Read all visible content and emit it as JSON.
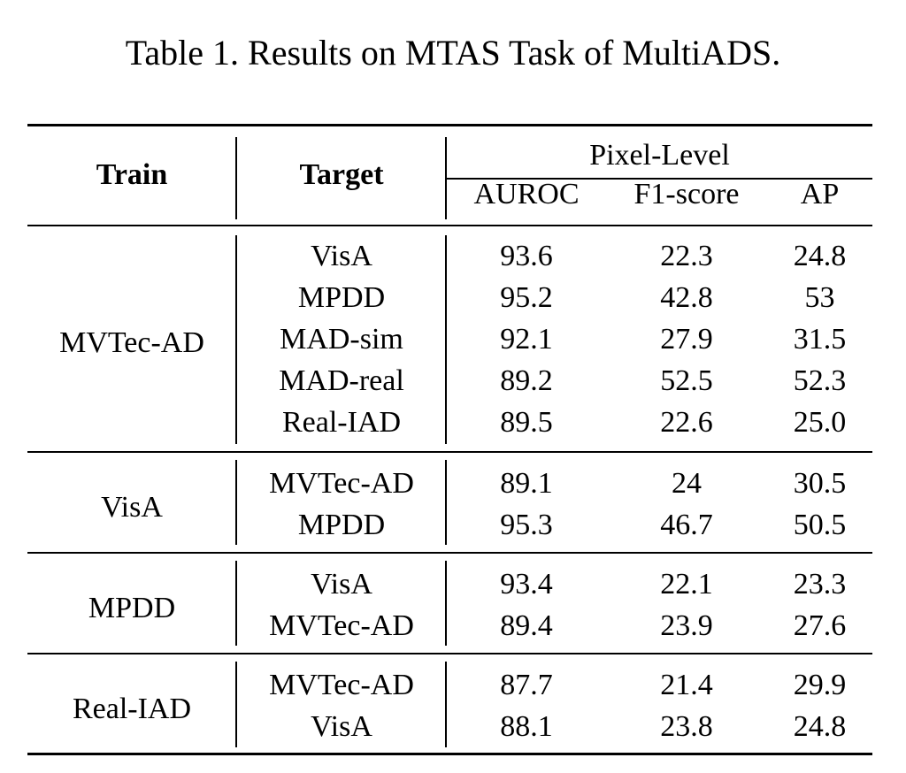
{
  "caption": "Table 1. Results on MTAS Task of MultiADS.",
  "table": {
    "headers": {
      "train": "Train",
      "target": "Target",
      "group": "Pixel-Level",
      "metrics": [
        "AUROC",
        "F1-score",
        "AP"
      ]
    },
    "groups": [
      {
        "train": "MVTec-AD",
        "rows": [
          {
            "target": "VisA",
            "auroc": "93.6",
            "f1": "22.3",
            "ap": "24.8"
          },
          {
            "target": "MPDD",
            "auroc": "95.2",
            "f1": "42.8",
            "ap": "53"
          },
          {
            "target": "MAD-sim",
            "auroc": "92.1",
            "f1": "27.9",
            "ap": "31.5"
          },
          {
            "target": "MAD-real",
            "auroc": "89.2",
            "f1": "52.5",
            "ap": "52.3"
          },
          {
            "target": "Real-IAD",
            "auroc": "89.5",
            "f1": "22.6",
            "ap": "25.0"
          }
        ]
      },
      {
        "train": "VisA",
        "rows": [
          {
            "target": "MVTec-AD",
            "auroc": "89.1",
            "f1": "24",
            "ap": "30.5"
          },
          {
            "target": "MPDD",
            "auroc": "95.3",
            "f1": "46.7",
            "ap": "50.5"
          }
        ]
      },
      {
        "train": "MPDD",
        "rows": [
          {
            "target": "VisA",
            "auroc": "93.4",
            "f1": "22.1",
            "ap": "23.3"
          },
          {
            "target": "MVTec-AD",
            "auroc": "89.4",
            "f1": "23.9",
            "ap": "27.6"
          }
        ]
      },
      {
        "train": "Real-IAD",
        "rows": [
          {
            "target": "MVTec-AD",
            "auroc": "87.7",
            "f1": "21.4",
            "ap": "29.9"
          },
          {
            "target": "VisA",
            "auroc": "88.1",
            "f1": "23.8",
            "ap": "24.8"
          }
        ]
      }
    ]
  }
}
